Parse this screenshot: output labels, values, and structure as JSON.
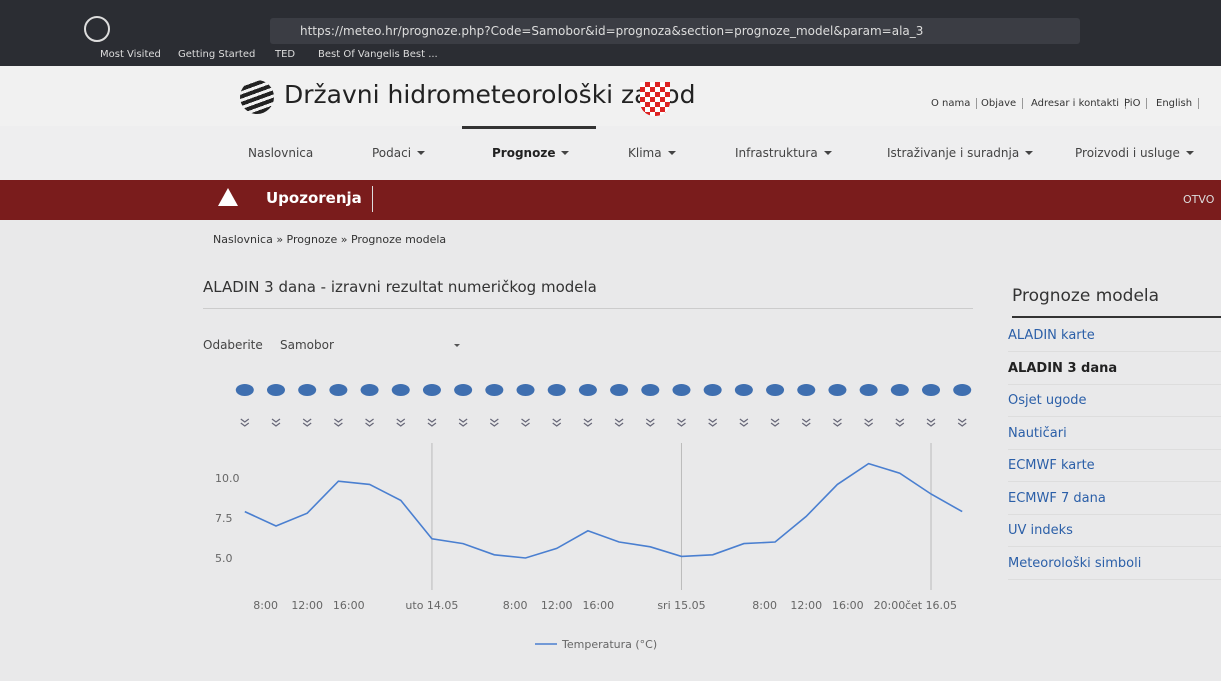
{
  "browser": {
    "url": "https://meteo.hr/prognoze.php?Code=Samobor&id=prognoza&section=prognoze_model&param=ala_3",
    "bookmarks": [
      "Most Visited",
      "Getting Started",
      "TED",
      "Best Of Vangelis Best ..."
    ]
  },
  "header": {
    "title": "Državni hidrometeorološki zavod",
    "links": [
      "O nama",
      "Objave",
      "Adresar i kontakti",
      "PiO",
      "English"
    ]
  },
  "nav": [
    "Naslovnica",
    "Podaci",
    "Prognoze",
    "Klima",
    "Infrastruktura",
    "Istraživanje i suradnja",
    "Proizvodi i usluge"
  ],
  "alert_bar": {
    "label": "Upozorenja",
    "right": "OTVO"
  },
  "breadcrumb": {
    "items": [
      "Naslovnica",
      "Prognoze",
      "Prognoze modela"
    ],
    "separator": "»"
  },
  "page_title": "ALADIN 3 dana - izravni rezultat numeričkog modela",
  "selector": {
    "label": "Odaberite",
    "value": "Samobor"
  },
  "sidebar": {
    "title": "Prognoze modela",
    "links": [
      "ALADIN karte",
      "ALADIN 3 dana",
      "Osjet ugode",
      "Nautičari",
      "ECMWF karte",
      "ECMWF 7 dana",
      "UV indeks",
      "Meteorološki simboli"
    ]
  },
  "chart_data": {
    "type": "line",
    "x": [
      6,
      9,
      12,
      15,
      18,
      21,
      24,
      27,
      30,
      33,
      36,
      39,
      42,
      45,
      48,
      51,
      54,
      57,
      60,
      63,
      66,
      69,
      72,
      75
    ],
    "series": [
      {
        "name": "Temperatura (°C)",
        "color": "#4a7fd0",
        "values": [
          7.9,
          7.0,
          7.8,
          9.8,
          9.6,
          8.6,
          6.2,
          5.9,
          5.2,
          5.0,
          5.6,
          6.7,
          6.0,
          5.7,
          5.1,
          5.2,
          5.9,
          6.0,
          7.6,
          9.6,
          10.9,
          10.3,
          9.0,
          7.9
        ]
      }
    ],
    "xlim": [
      4,
      77
    ],
    "xticks": [
      {
        "value": 8,
        "label": "8:00"
      },
      {
        "value": 12,
        "label": "12:00"
      },
      {
        "value": 16,
        "label": "16:00"
      },
      {
        "value": 24,
        "label": "uto 14.05"
      },
      {
        "value": 32,
        "label": "8:00"
      },
      {
        "value": 36,
        "label": "12:00"
      },
      {
        "value": 40,
        "label": "16:00"
      },
      {
        "value": 48,
        "label": "sri 15.05"
      },
      {
        "value": 56,
        "label": "8:00"
      },
      {
        "value": 60,
        "label": "12:00"
      },
      {
        "value": 64,
        "label": "16:00"
      },
      {
        "value": 68,
        "label": "20:00"
      },
      {
        "value": 72,
        "label": "čet 16.05"
      }
    ],
    "ylim": [
      3,
      12.5
    ],
    "yticks": [
      {
        "value": 5,
        "label": "5.0"
      },
      7.5,
      {
        "value": 10,
        "label": "10.0"
      }
    ],
    "grid": true
  }
}
